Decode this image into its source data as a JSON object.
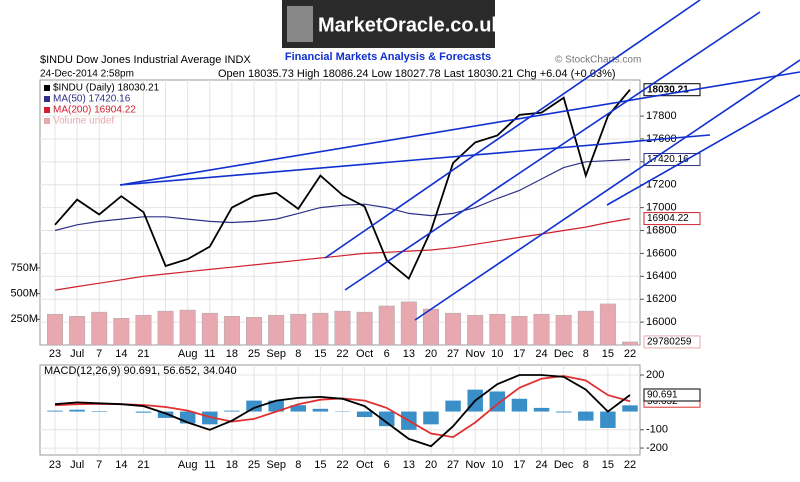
{
  "header": {
    "logo": "MarketOracle.co.uk",
    "tagline": "Financial Markets Analysis & Forecasts",
    "source": "© StockCharts.com"
  },
  "chart_data": [
    {
      "type": "line",
      "title": "$INDU Dow Jones Industrial Average INDX",
      "subtitle": "24-Dec-2014 2:58pm",
      "annotation": "Open 18035.73 High 18086.24 Low 18027.78 Last 18030.21 Chg +6.04 (+0.03%)",
      "categories": [
        "23",
        "Jul",
        "7",
        "14",
        "21",
        null,
        "Aug",
        "11",
        "18",
        "25",
        "Sep",
        "8",
        "15",
        "22",
        "Oct",
        "6",
        "13",
        "20",
        "27",
        "Nov",
        "10",
        "17",
        "24",
        "Dec",
        "8",
        "15",
        "22"
      ],
      "ylim": [
        15800,
        18115
      ],
      "yticks": [
        16000,
        16200,
        16400,
        16600,
        16800,
        17000,
        17200,
        17400,
        17600,
        17800
      ],
      "y2lim": [
        0,
        2580000000
      ],
      "y2ticks": [
        {
          "value": 250000000,
          "label": "250M"
        },
        {
          "value": 500000000,
          "label": "500M"
        },
        {
          "value": 750000000,
          "label": "750M"
        }
      ],
      "grid": true,
      "series": [
        {
          "name": "Volume undef",
          "type": "bar",
          "axis": "y2",
          "color": "#e8a8b0",
          "label_last": true,
          "values": [
            300000000,
            280000000,
            320000000,
            260000000,
            290000000,
            330000000,
            340000000,
            310000000,
            280000000,
            270000000,
            290000000,
            300000000,
            310000000,
            330000000,
            320000000,
            380000000,
            420000000,
            350000000,
            310000000,
            290000000,
            300000000,
            280000000,
            300000000,
            290000000,
            330000000,
            400000000,
            29780259
          ]
        },
        {
          "name": "MA(200) 16904.22",
          "type": "line",
          "color": "#d0202e",
          "label_last": true,
          "values": [
            16280,
            16310,
            16340,
            16370,
            16400,
            16420,
            16440,
            16460,
            16480,
            16500,
            16520,
            16540,
            16560,
            16580,
            16600,
            16610,
            16620,
            16630,
            16650,
            16680,
            16710,
            16740,
            16770,
            16800,
            16830,
            16870,
            16904.22
          ]
        },
        {
          "name": "MA(50) 17420.16",
          "type": "line",
          "color": "#30308a",
          "label_last": true,
          "values": [
            16800,
            16850,
            16880,
            16900,
            16920,
            16920,
            16900,
            16880,
            16870,
            16880,
            16900,
            16950,
            17000,
            17020,
            17030,
            17000,
            16950,
            16930,
            16950,
            17000,
            17080,
            17150,
            17250,
            17350,
            17400,
            17410,
            17420.16
          ]
        },
        {
          "name": "$INDU (Daily) 18030.21",
          "type": "line",
          "color": "#000000",
          "label_last": true,
          "values": [
            16850,
            17070,
            16940,
            17100,
            16960,
            16490,
            16550,
            16660,
            17000,
            17100,
            17130,
            16990,
            17280,
            17110,
            17010,
            16540,
            16380,
            16800,
            17390,
            17570,
            17630,
            17810,
            17830,
            17960,
            17280,
            17800,
            18030.21
          ]
        }
      ]
    },
    {
      "type": "line",
      "title": "MACD(12,26,9) 90.691, 56.652, 34.040",
      "categories": [
        "23",
        "Jul",
        "7",
        "14",
        "21",
        null,
        "Aug",
        "11",
        "18",
        "25",
        "Sep",
        "8",
        "15",
        "22",
        "Oct",
        "6",
        "13",
        "20",
        "27",
        "Nov",
        "10",
        "17",
        "24",
        "Dec",
        "8",
        "15",
        "22"
      ],
      "ylim": [
        -238,
        255
      ],
      "yticks": [
        200,
        -100,
        -200
      ],
      "grid": true,
      "series": [
        {
          "name": "Histogram",
          "type": "bar",
          "color": "#3a8fc8",
          "label_last": false,
          "values": [
            5,
            10,
            3,
            0,
            -6,
            -35,
            -65,
            -70,
            5,
            60,
            60,
            35,
            15,
            -2,
            -30,
            -80,
            -100,
            -70,
            60,
            120,
            110,
            70,
            20,
            -5,
            -50,
            -90,
            34.04
          ]
        },
        {
          "name": "Signal",
          "type": "line",
          "color": "#e03030",
          "label_last": true,
          "values": [
            35,
            40,
            42,
            40,
            36,
            25,
            5,
            -30,
            -55,
            -40,
            0,
            40,
            65,
            72,
            60,
            20,
            -50,
            -120,
            -140,
            -60,
            40,
            130,
            180,
            195,
            170,
            90,
            56.652
          ]
        },
        {
          "name": "MACD",
          "type": "line",
          "color": "#000000",
          "label_last": true,
          "values": [
            40,
            50,
            45,
            40,
            30,
            -10,
            -60,
            -100,
            -50,
            20,
            60,
            75,
            80,
            70,
            30,
            -60,
            -150,
            -190,
            -80,
            60,
            150,
            200,
            200,
            190,
            120,
            0,
            90.691
          ]
        }
      ]
    }
  ]
}
